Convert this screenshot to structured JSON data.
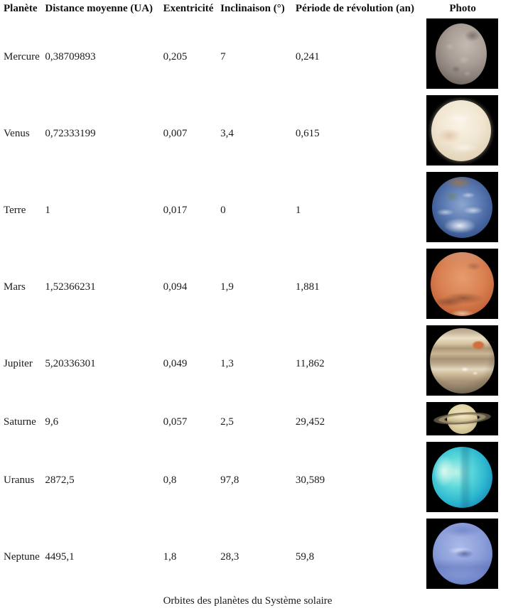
{
  "header": {
    "columns": [
      "Planète",
      "Distance moyenne (UA)",
      "Exentricité",
      "Inclinaison  (°)",
      "Période de révolution (an)",
      "Photo"
    ]
  },
  "rows": [
    {
      "planet": "Mercure",
      "distance": "0,38709893",
      "eccentricity": "0,205",
      "inclination": "7",
      "period": "0,241",
      "photo_icon": "mercury-photo"
    },
    {
      "planet": "Venus",
      "distance": "0,72333199",
      "eccentricity": "0,007",
      "inclination": "3,4",
      "period": "0,615",
      "photo_icon": "venus-photo"
    },
    {
      "planet": "Terre",
      "distance": "1",
      "eccentricity": "0,017",
      "inclination": "0",
      "period": "1",
      "photo_icon": "earth-photo"
    },
    {
      "planet": "Mars",
      "distance": "1,52366231",
      "eccentricity": "0,094",
      "inclination": "1,9",
      "period": "1,881",
      "photo_icon": "mars-photo"
    },
    {
      "planet": "Jupiter",
      "distance": "5,20336301",
      "eccentricity": "0,049",
      "inclination": "1,3",
      "period": "11,862",
      "photo_icon": "jupiter-photo"
    },
    {
      "planet": "Saturne",
      "distance": "9,6",
      "eccentricity": "0,057",
      "inclination": "2,5",
      "period": "29,452",
      "photo_icon": "saturn-photo"
    },
    {
      "planet": "Uranus",
      "distance": "2872,5",
      "eccentricity": "0,8",
      "inclination": "97,8",
      "period": "30,589",
      "photo_icon": "uranus-photo"
    },
    {
      "planet": "Neptune",
      "distance": "4495,1",
      "eccentricity": "1,8",
      "inclination": "28,3",
      "period": "59,8",
      "photo_icon": "neptune-photo"
    }
  ],
  "caption": "Orbites des planètes du Système solaire",
  "colors": {
    "background": "#ffffff",
    "text": "#1b1b1b",
    "photo_frame": "#000000"
  }
}
